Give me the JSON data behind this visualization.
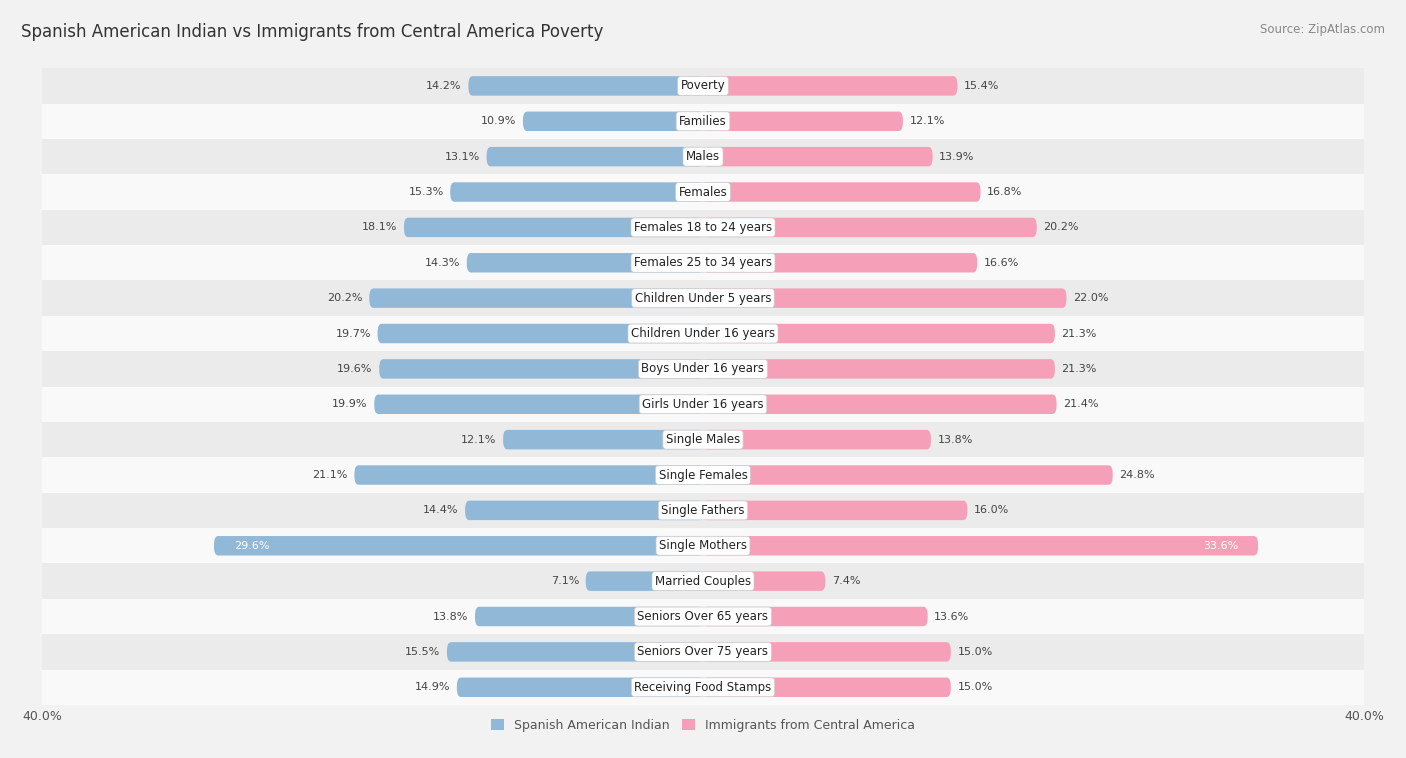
{
  "title": "Spanish American Indian vs Immigrants from Central America Poverty",
  "source": "Source: ZipAtlas.com",
  "categories": [
    "Poverty",
    "Families",
    "Males",
    "Females",
    "Females 18 to 24 years",
    "Females 25 to 34 years",
    "Children Under 5 years",
    "Children Under 16 years",
    "Boys Under 16 years",
    "Girls Under 16 years",
    "Single Males",
    "Single Females",
    "Single Fathers",
    "Single Mothers",
    "Married Couples",
    "Seniors Over 65 years",
    "Seniors Over 75 years",
    "Receiving Food Stamps"
  ],
  "left_values": [
    14.2,
    10.9,
    13.1,
    15.3,
    18.1,
    14.3,
    20.2,
    19.7,
    19.6,
    19.9,
    12.1,
    21.1,
    14.4,
    29.6,
    7.1,
    13.8,
    15.5,
    14.9
  ],
  "right_values": [
    15.4,
    12.1,
    13.9,
    16.8,
    20.2,
    16.6,
    22.0,
    21.3,
    21.3,
    21.4,
    13.8,
    24.8,
    16.0,
    33.6,
    7.4,
    13.6,
    15.0,
    15.0
  ],
  "left_color": "#92b8d8",
  "right_color": "#f5a0b8",
  "left_color_highlight": "#5a8fc0",
  "right_color_highlight": "#e05878",
  "label_left": "Spanish American Indian",
  "label_right": "Immigrants from Central America",
  "axis_max": 40.0,
  "bg_color": "#f2f2f2",
  "row_color_odd": "#f9f9f9",
  "row_color_even": "#ebebeb",
  "title_fontsize": 12,
  "source_fontsize": 8.5,
  "cat_fontsize": 8.5,
  "value_fontsize": 8.0,
  "axis_fontsize": 9,
  "legend_fontsize": 9
}
